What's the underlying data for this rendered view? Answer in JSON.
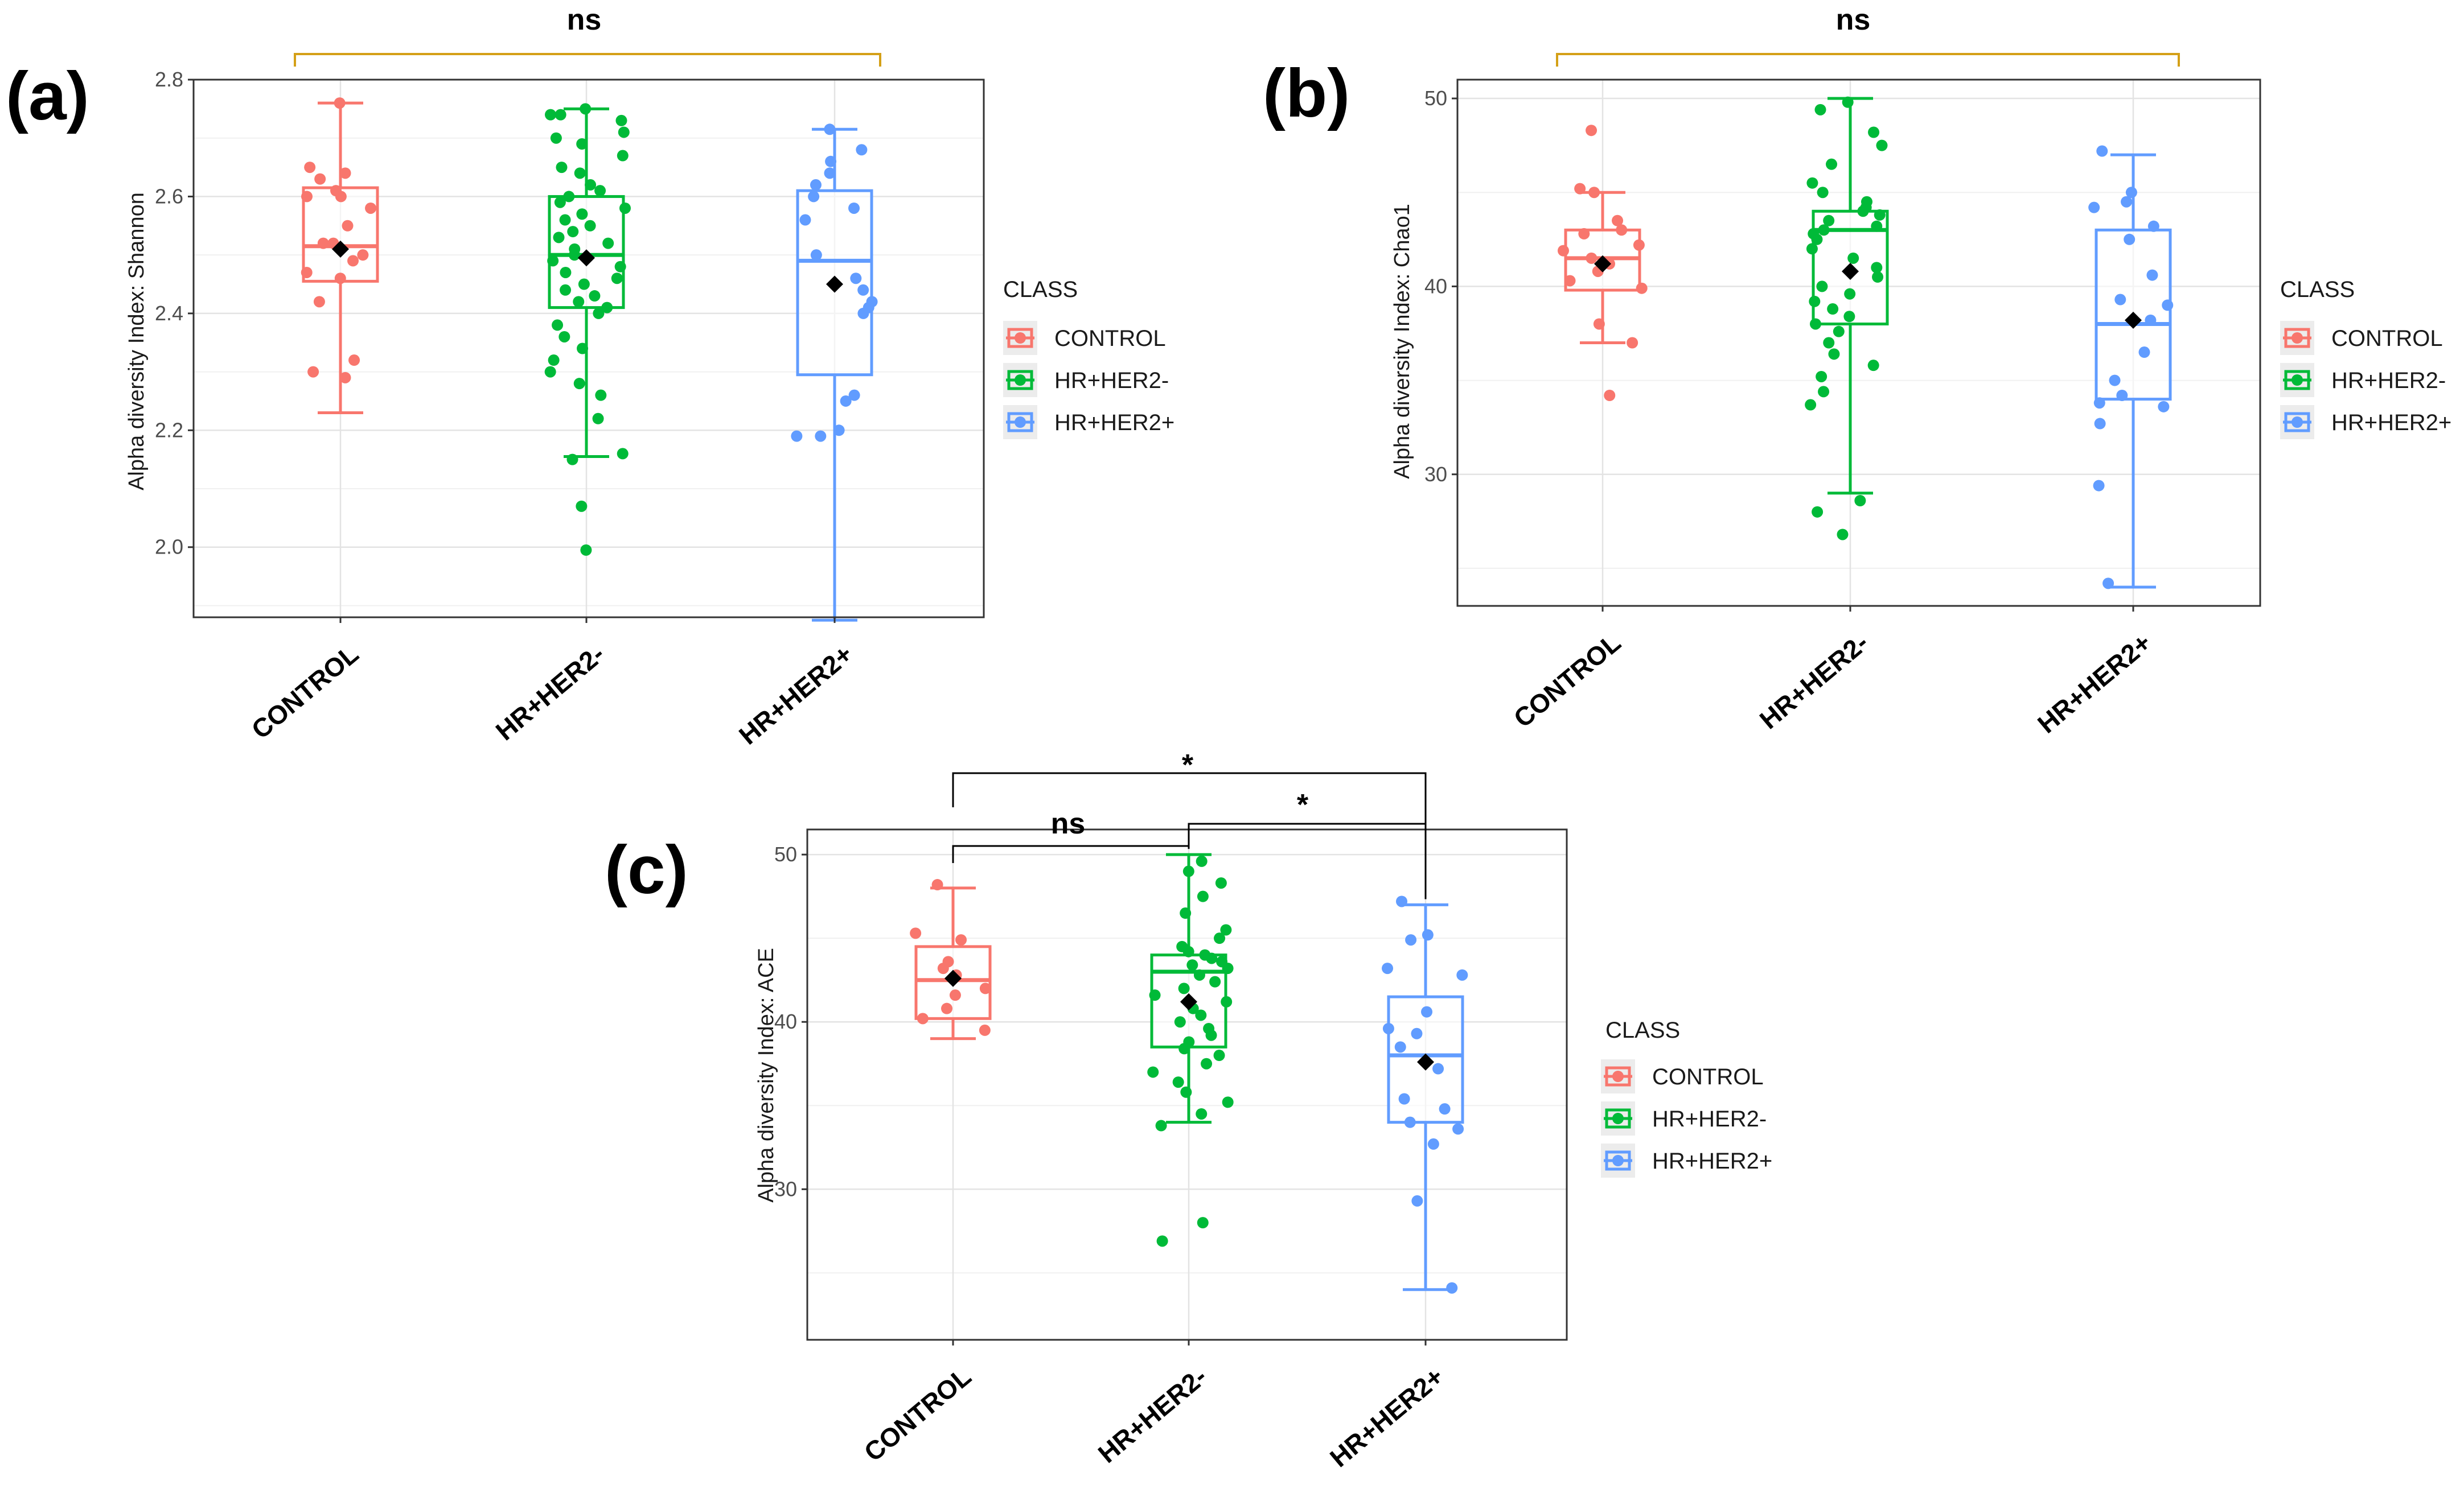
{
  "figure": {
    "legend_title": "CLASS",
    "classes": [
      "CONTROL",
      "HR+HER2-",
      "HR+HER2+"
    ],
    "class_colors": [
      "#F8766D",
      "#00BA38",
      "#619CFF"
    ],
    "mean_marker_color": "#000000",
    "bracket_color_overall": "#D4A017",
    "bracket_color_pairwise": "#000000"
  },
  "chart_data": [
    {
      "panel": "(a)",
      "type": "box",
      "title": "",
      "xlabel": "",
      "ylabel": "Alpha diversity Index: Shannon",
      "ylim": [
        1.88,
        2.8
      ],
      "yticks": [
        2.0,
        2.2,
        2.4,
        2.6,
        2.8
      ],
      "yticklabels": [
        "2.0",
        "2.2",
        "2.4",
        "2.6",
        "2.8"
      ],
      "categories": [
        "CONTROL",
        "HR+HER2-",
        "HR+HER2+"
      ],
      "boxes": [
        {
          "min": 2.23,
          "q1": 2.455,
          "median": 2.515,
          "q3": 2.615,
          "max": 2.76,
          "mean": 2.51
        },
        {
          "min": 2.155,
          "q1": 2.41,
          "median": 2.5,
          "q3": 2.6,
          "max": 2.75,
          "mean": 2.495
        },
        {
          "min": 1.875,
          "q1": 2.295,
          "median": 2.49,
          "q3": 2.61,
          "max": 2.715,
          "mean": 2.45
        }
      ],
      "points": [
        [
          2.76,
          2.64,
          2.65,
          2.63,
          2.61,
          2.6,
          2.6,
          2.58,
          2.55,
          2.52,
          2.52,
          2.5,
          2.49,
          2.47,
          2.46,
          2.42,
          2.32,
          2.3,
          2.29
        ],
        [
          2.75,
          2.74,
          2.74,
          2.73,
          2.71,
          2.7,
          2.69,
          2.67,
          2.65,
          2.64,
          2.62,
          2.61,
          2.6,
          2.59,
          2.58,
          2.57,
          2.56,
          2.55,
          2.54,
          2.53,
          2.52,
          2.51,
          2.5,
          2.49,
          2.48,
          2.47,
          2.46,
          2.45,
          2.44,
          2.43,
          2.42,
          2.41,
          2.4,
          2.38,
          2.36,
          2.34,
          2.32,
          2.3,
          2.28,
          2.26,
          2.22,
          2.16,
          2.15,
          2.07,
          1.995
        ],
        [
          2.715,
          2.68,
          2.66,
          2.64,
          2.62,
          2.6,
          2.58,
          2.56,
          2.5,
          2.46,
          2.44,
          2.42,
          2.41,
          2.4,
          2.26,
          2.25,
          2.2,
          2.19,
          2.19
        ]
      ],
      "significance": [
        {
          "groups": [
            "CONTROL",
            "HR+HER2+"
          ],
          "label": "ns",
          "style": "overall"
        }
      ]
    },
    {
      "panel": "(b)",
      "type": "box",
      "title": "",
      "xlabel": "",
      "ylabel": "Alpha diversity Index: Chao1",
      "ylim": [
        23,
        51
      ],
      "yticks": [
        30,
        40,
        50
      ],
      "yticklabels": [
        "30",
        "40",
        "50"
      ],
      "categories": [
        "CONTROL",
        "HR+HER2-",
        "HR+HER2+"
      ],
      "boxes": [
        {
          "min": 37,
          "q1": 39.8,
          "median": 41.5,
          "q3": 43,
          "max": 45,
          "mean": 41.2
        },
        {
          "min": 29,
          "q1": 38,
          "median": 43,
          "q3": 44,
          "max": 50,
          "mean": 40.8
        },
        {
          "min": 24,
          "q1": 34,
          "median": 38,
          "q3": 43,
          "max": 47,
          "mean": 38.2
        }
      ],
      "points": [
        [
          48.3,
          45.2,
          45,
          43.5,
          43,
          42.8,
          42.2,
          41.9,
          41.5,
          41.2,
          40.8,
          40.3,
          39.9,
          38,
          37,
          34.2
        ],
        [
          49.8,
          49.4,
          48.2,
          47.5,
          46.5,
          45.5,
          45,
          44.5,
          44.2,
          44,
          43.8,
          43.5,
          43.2,
          43,
          42.8,
          42.5,
          42,
          41.5,
          41,
          40.5,
          40,
          39.6,
          39.2,
          38.8,
          38.4,
          38,
          37.6,
          37,
          36.4,
          35.8,
          35.2,
          34.4,
          33.7,
          28.6,
          28,
          26.8
        ],
        [
          47.2,
          45,
          44.5,
          44.2,
          43.2,
          42.5,
          40.6,
          39.3,
          39,
          38.2,
          36.5,
          35,
          34.2,
          33.8,
          33.6,
          32.7,
          29.4,
          24.2
        ]
      ],
      "significance": [
        {
          "groups": [
            "CONTROL",
            "HR+HER2+"
          ],
          "label": "ns",
          "style": "overall"
        }
      ]
    },
    {
      "panel": "(c)",
      "type": "box",
      "title": "",
      "xlabel": "",
      "ylabel": "Alpha diversity Index: ACE",
      "ylim": [
        21,
        51.5
      ],
      "yticks": [
        30,
        40,
        50
      ],
      "yticklabels": [
        "30",
        "40",
        "50"
      ],
      "categories": [
        "CONTROL",
        "HR+HER2-",
        "HR+HER2+"
      ],
      "boxes": [
        {
          "min": 39,
          "q1": 40.2,
          "median": 42.5,
          "q3": 44.5,
          "max": 48,
          "mean": 42.6
        },
        {
          "min": 34,
          "q1": 38.5,
          "median": 43,
          "q3": 44,
          "max": 50,
          "mean": 41.2
        },
        {
          "min": 24,
          "q1": 34,
          "median": 38,
          "q3": 41.5,
          "max": 47,
          "mean": 37.6
        }
      ],
      "points": [
        [
          48.2,
          45.3,
          44.9,
          43.6,
          43.2,
          42.8,
          42,
          41.6,
          40.8,
          40.2,
          39.5
        ],
        [
          49.6,
          49,
          48.3,
          47.5,
          46.5,
          45.5,
          45,
          44.5,
          44.2,
          44,
          43.8,
          43.6,
          43.4,
          43.2,
          42.8,
          42.4,
          42,
          41.6,
          41.2,
          40.8,
          40.4,
          40,
          39.6,
          39.2,
          38.8,
          38.4,
          38,
          37.5,
          37,
          36.4,
          35.8,
          35.2,
          34.5,
          33.8,
          28,
          26.9
        ],
        [
          47.2,
          45.2,
          44.9,
          43.2,
          42.8,
          40.6,
          39.6,
          39.3,
          38.5,
          37.2,
          35.4,
          34.8,
          34,
          33.6,
          32.7,
          29.3,
          24.1
        ]
      ],
      "significance": [
        {
          "groups": [
            "CONTROL",
            "HR+HER2-"
          ],
          "label": "ns",
          "style": "pairwise"
        },
        {
          "groups": [
            "HR+HER2-",
            "HR+HER2+"
          ],
          "label": "*",
          "style": "pairwise"
        },
        {
          "groups": [
            "CONTROL",
            "HR+HER2+"
          ],
          "label": "*",
          "style": "pairwise"
        }
      ]
    }
  ]
}
